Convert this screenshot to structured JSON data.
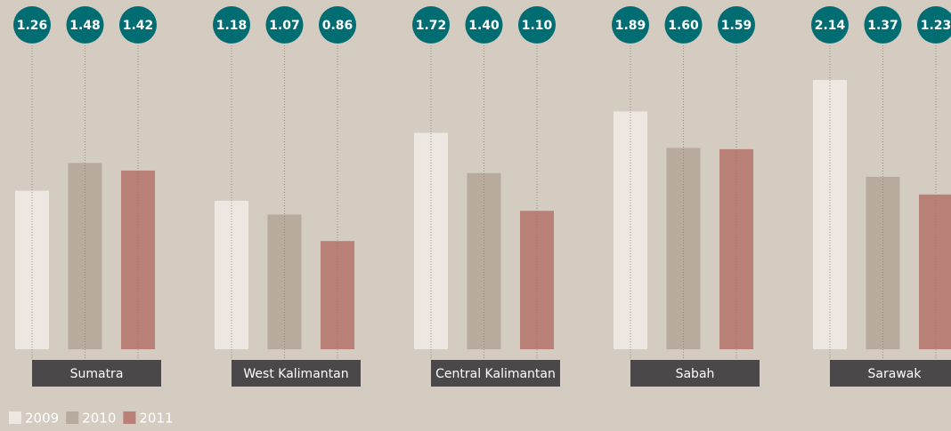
{
  "chart_data": {
    "type": "bar",
    "categories": [
      "Sumatra",
      "West Kalimantan",
      "Central Kalimantan",
      "Sabah",
      "Sarawak"
    ],
    "series": [
      {
        "name": "2009",
        "color": "#ede7e1",
        "values": [
          1.26,
          1.18,
          1.72,
          1.89,
          2.14
        ],
        "value_labels": [
          "1.26",
          "1.18",
          "1.72",
          "1.89",
          "2.14"
        ]
      },
      {
        "name": "2010",
        "color": "#b8aa9d",
        "values": [
          1.48,
          1.07,
          1.4,
          1.6,
          1.37
        ],
        "value_labels": [
          "1.48",
          "1.07",
          "1.40",
          "1.60",
          "1.37"
        ]
      },
      {
        "name": "2011",
        "color": "#b98078",
        "values": [
          1.42,
          0.86,
          1.1,
          1.59,
          1.23
        ],
        "value_labels": [
          "1.42",
          "0.86",
          "1.10",
          "1.59",
          "1.23"
        ]
      }
    ],
    "label_color": "#006d72",
    "category_box_color": "#4a4848"
  }
}
